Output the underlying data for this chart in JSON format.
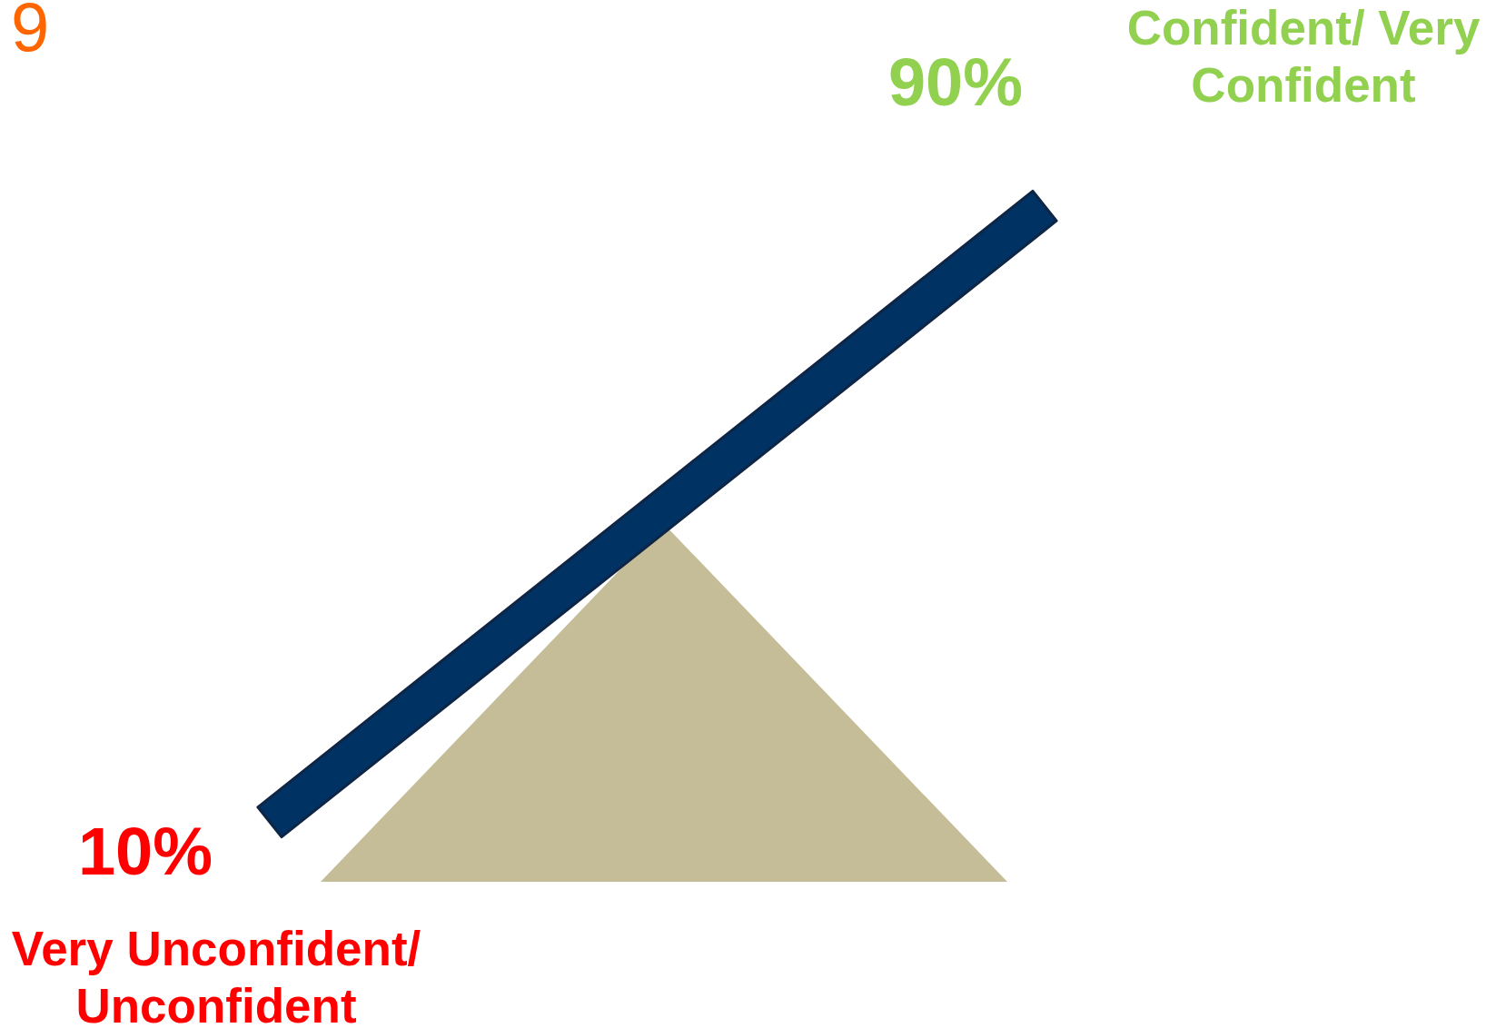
{
  "chart_data": {
    "type": "other",
    "categories": [
      "Very Unconfident/ Unconfident",
      "Confident/ Very Confident"
    ],
    "values": [
      10,
      90
    ],
    "value_labels": [
      "10%",
      "90%"
    ],
    "colors": [
      "#ff0000",
      "#92d050"
    ],
    "annotations": [
      "9"
    ]
  }
}
